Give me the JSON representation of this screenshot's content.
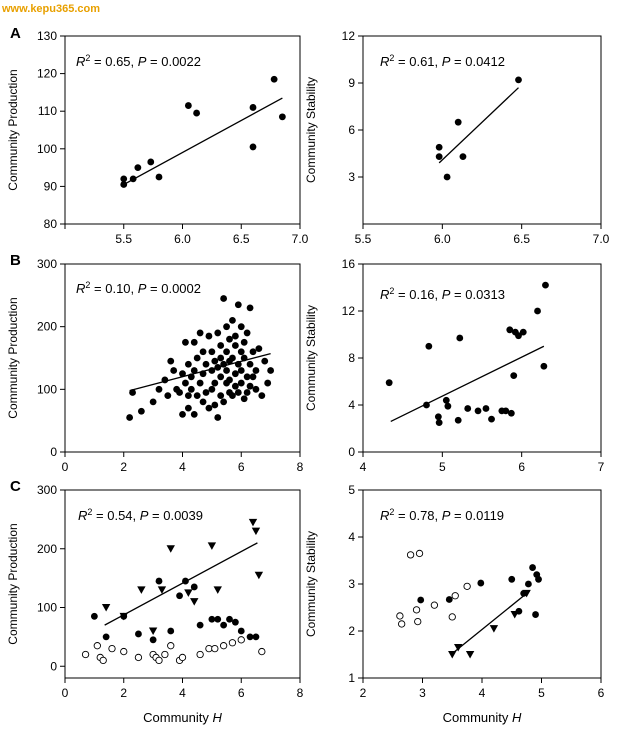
{
  "watermark": "www.kepu365.com",
  "chart_data": [
    {
      "id": "A-left",
      "panel": "A",
      "type": "scatter",
      "xlim": [
        5.0,
        7.0
      ],
      "xticks": [
        "5.0",
        "5.5",
        "6.0",
        "6.5",
        "7.0"
      ],
      "xtick_values": [
        5.0,
        5.5,
        6.0,
        6.5,
        7.0
      ],
      "show_xticklabels": true,
      "x_first_label": false,
      "ylim": [
        80,
        130
      ],
      "yticks": [
        "80",
        "90",
        "100",
        "110",
        "120",
        "130"
      ],
      "ytick_values": [
        80,
        90,
        100,
        110,
        120,
        130
      ],
      "ylabel": "Community Production",
      "xlabel": "",
      "stat": {
        "r2": "0.65",
        "p": "0.0022"
      },
      "series": [
        {
          "marker": "filled-circle",
          "x": [
            5.5,
            5.5,
            5.58,
            5.62,
            5.73,
            5.8,
            6.05,
            6.12,
            6.6,
            6.6,
            6.78,
            6.85
          ],
          "y": [
            92,
            90.5,
            92,
            95,
            96.5,
            92.5,
            111.5,
            109.5,
            100.5,
            111,
            118.5,
            108.5
          ]
        }
      ],
      "fit": {
        "x": [
          5.5,
          6.85
        ],
        "y": [
          90.5,
          113.5
        ]
      }
    },
    {
      "id": "A-right",
      "panel": "",
      "type": "scatter",
      "xlim": [
        5.5,
        7.0
      ],
      "xticks": [
        "5.5",
        "6.0",
        "6.5",
        "7.0"
      ],
      "xtick_values": [
        5.5,
        6.0,
        6.5,
        7.0
      ],
      "show_xticklabels": true,
      "x_first_label": true,
      "ylim": [
        0,
        12
      ],
      "yticks": [
        "3",
        "6",
        "9",
        "12"
      ],
      "ytick_values": [
        3,
        6,
        9,
        12
      ],
      "ylabel": "Community Stability",
      "xlabel": "",
      "stat": {
        "r2": "0.61",
        "p": "0.0412"
      },
      "series": [
        {
          "marker": "filled-circle",
          "x": [
            5.98,
            5.98,
            6.03,
            6.1,
            6.13,
            6.48
          ],
          "y": [
            4.9,
            4.3,
            3.0,
            6.5,
            4.3,
            9.2
          ]
        }
      ],
      "fit": {
        "x": [
          5.98,
          6.48
        ],
        "y": [
          3.9,
          8.7
        ]
      }
    },
    {
      "id": "B-left",
      "panel": "B",
      "type": "scatter",
      "xlim": [
        0,
        8
      ],
      "xticks": [
        "0",
        "2",
        "4",
        "6",
        "8"
      ],
      "xtick_values": [
        0,
        2,
        4,
        6,
        8
      ],
      "show_xticklabels": true,
      "x_first_label": true,
      "ylim": [
        0,
        300
      ],
      "yticks": [
        "0",
        "100",
        "200",
        "300"
      ],
      "ytick_values": [
        0,
        100,
        200,
        300
      ],
      "ylabel": "Community Production",
      "xlabel": "",
      "stat": {
        "r2": "0.10",
        "p": "0.0002"
      },
      "series": [
        {
          "marker": "filled-circle",
          "x": [
            2.2,
            2.3,
            2.6,
            3.0,
            3.2,
            3.4,
            3.5,
            3.6,
            3.7,
            3.8,
            3.9,
            4.0,
            4.0,
            4.1,
            4.1,
            4.2,
            4.2,
            4.2,
            4.3,
            4.3,
            4.4,
            4.4,
            4.4,
            4.5,
            4.5,
            4.6,
            4.6,
            4.7,
            4.7,
            4.7,
            4.8,
            4.8,
            4.9,
            4.9,
            5.0,
            5.0,
            5.0,
            5.1,
            5.1,
            5.1,
            5.2,
            5.2,
            5.2,
            5.3,
            5.3,
            5.3,
            5.3,
            5.4,
            5.4,
            5.4,
            5.5,
            5.5,
            5.5,
            5.5,
            5.6,
            5.6,
            5.6,
            5.6,
            5.7,
            5.7,
            5.7,
            5.8,
            5.8,
            5.8,
            5.8,
            5.9,
            5.9,
            5.9,
            6.0,
            6.0,
            6.0,
            6.0,
            6.1,
            6.1,
            6.1,
            6.2,
            6.2,
            6.2,
            6.3,
            6.3,
            6.3,
            6.4,
            6.4,
            6.5,
            6.5,
            6.6,
            6.7,
            6.8,
            6.9,
            7.0
          ],
          "y": [
            55,
            95,
            65,
            80,
            100,
            115,
            90,
            145,
            130,
            100,
            95,
            60,
            125,
            110,
            175,
            70,
            140,
            90,
            100,
            120,
            60,
            175,
            130,
            150,
            90,
            190,
            110,
            80,
            160,
            125,
            95,
            140,
            70,
            185,
            100,
            160,
            130,
            75,
            145,
            110,
            190,
            55,
            135,
            90,
            170,
            120,
            150,
            245,
            80,
            140,
            200,
            110,
            160,
            130,
            95,
            180,
            145,
            115,
            90,
            210,
            150,
            170,
            125,
            105,
            185,
            140,
            95,
            235,
            160,
            130,
            110,
            200,
            85,
            150,
            175,
            120,
            95,
            190,
            140,
            105,
            230,
            160,
            120,
            130,
            100,
            165,
            90,
            145,
            110,
            130
          ]
        }
      ],
      "fit": {
        "x": [
          2.2,
          7.0
        ],
        "y": [
          98,
          157
        ]
      }
    },
    {
      "id": "B-right",
      "panel": "",
      "type": "scatter",
      "xlim": [
        4,
        7
      ],
      "xticks": [
        "4",
        "5",
        "6",
        "7"
      ],
      "xtick_values": [
        4,
        5,
        6,
        7
      ],
      "show_xticklabels": true,
      "x_first_label": true,
      "ylim": [
        0,
        16
      ],
      "yticks": [
        "0",
        "4",
        "8",
        "12",
        "16"
      ],
      "ytick_values": [
        0,
        4,
        8,
        12,
        16
      ],
      "ylabel": "Community Stability",
      "xlabel": "",
      "stat": {
        "r2": "0.16",
        "p": "0.0313"
      },
      "series": [
        {
          "marker": "filled-circle",
          "x": [
            4.33,
            4.8,
            4.83,
            4.95,
            4.96,
            5.05,
            5.07,
            5.2,
            5.22,
            5.32,
            5.45,
            5.55,
            5.62,
            5.75,
            5.8,
            5.85,
            5.87,
            5.9,
            5.92,
            5.96,
            6.02,
            6.2,
            6.28,
            6.3
          ],
          "y": [
            5.9,
            4.0,
            9.0,
            3.0,
            2.5,
            4.4,
            3.9,
            2.7,
            9.7,
            3.7,
            3.5,
            3.7,
            2.8,
            3.5,
            3.5,
            10.4,
            3.3,
            6.5,
            10.2,
            9.9,
            10.2,
            12.0,
            7.3,
            14.2
          ]
        }
      ],
      "fit": {
        "x": [
          4.35,
          6.28
        ],
        "y": [
          2.6,
          9.0
        ]
      }
    },
    {
      "id": "C-left",
      "panel": "C",
      "type": "scatter",
      "xlim": [
        0,
        8
      ],
      "xticks": [
        "0",
        "2",
        "4",
        "6",
        "8"
      ],
      "xtick_values": [
        0,
        2,
        4,
        6,
        8
      ],
      "show_xticklabels": true,
      "x_first_label": true,
      "ylim": [
        -20,
        300
      ],
      "yticks": [
        "0",
        "100",
        "200",
        "300"
      ],
      "ytick_values": [
        0,
        100,
        200,
        300
      ],
      "ylabel": "Community Production",
      "xlabel": "Community H",
      "stat": {
        "r2": "0.54",
        "p": "0.0039"
      },
      "series": [
        {
          "marker": "filled-circle",
          "x": [
            1.0,
            1.4,
            2.0,
            2.5,
            3.0,
            3.2,
            3.6,
            3.9,
            4.1,
            4.4,
            4.6,
            5.0,
            5.2,
            5.4,
            5.6,
            5.8,
            6.0,
            6.3,
            6.5
          ],
          "y": [
            85,
            50,
            85,
            55,
            45,
            145,
            60,
            120,
            145,
            135,
            70,
            80,
            80,
            70,
            80,
            75,
            60,
            50,
            50
          ]
        },
        {
          "marker": "filled-triangle-down",
          "x": [
            1.4,
            2.0,
            2.6,
            3.0,
            3.3,
            3.6,
            4.2,
            4.4,
            5.0,
            5.2,
            6.4,
            6.5,
            6.6
          ],
          "y": [
            100,
            85,
            130,
            60,
            130,
            200,
            125,
            110,
            205,
            130,
            245,
            230,
            155
          ]
        },
        {
          "marker": "open-circle",
          "x": [
            0.7,
            1.1,
            1.2,
            1.3,
            1.6,
            2.0,
            2.5,
            3.0,
            3.1,
            3.2,
            3.4,
            3.6,
            3.9,
            4.0,
            4.6,
            4.9,
            5.1,
            5.4,
            5.7,
            6.0,
            6.7
          ],
          "y": [
            20,
            35,
            15,
            10,
            30,
            25,
            15,
            20,
            15,
            10,
            20,
            35,
            10,
            15,
            20,
            30,
            30,
            35,
            40,
            45,
            25
          ]
        }
      ],
      "fit": {
        "x": [
          1.35,
          6.55
        ],
        "y": [
          70,
          210
        ]
      }
    },
    {
      "id": "C-right",
      "panel": "",
      "type": "scatter",
      "xlim": [
        2,
        6
      ],
      "xticks": [
        "2",
        "3",
        "4",
        "5",
        "6"
      ],
      "xtick_values": [
        2,
        3,
        4,
        5,
        6
      ],
      "show_xticklabels": true,
      "x_first_label": true,
      "ylim": [
        1,
        5
      ],
      "yticks": [
        "1",
        "2",
        "3",
        "4",
        "5"
      ],
      "ytick_values": [
        1,
        2,
        3,
        4,
        5
      ],
      "ylabel": "Community Stability",
      "xlabel": "Community H",
      "stat": {
        "r2": "0.78",
        "p": "0.0119"
      },
      "series": [
        {
          "marker": "filled-circle",
          "x": [
            2.97,
            3.45,
            3.98,
            4.5,
            4.62,
            4.7,
            4.78,
            4.85,
            4.9,
            4.92,
            4.95
          ],
          "y": [
            2.66,
            2.67,
            3.02,
            3.1,
            2.42,
            2.8,
            3.0,
            3.35,
            2.35,
            3.2,
            3.1
          ]
        },
        {
          "marker": "filled-triangle-down",
          "x": [
            3.5,
            3.6,
            3.8,
            4.2,
            4.55,
            4.75
          ],
          "y": [
            1.5,
            1.65,
            1.5,
            2.05,
            2.35,
            2.8
          ]
        },
        {
          "marker": "open-circle",
          "x": [
            2.62,
            2.65,
            2.8,
            2.9,
            2.92,
            2.95,
            3.2,
            3.5,
            3.55,
            3.75
          ],
          "y": [
            2.32,
            2.15,
            3.62,
            2.45,
            2.2,
            3.65,
            2.55,
            2.3,
            2.75,
            2.95
          ]
        }
      ],
      "fit": {
        "x": [
          3.48,
          4.8
        ],
        "y": [
          1.5,
          2.85
        ]
      }
    }
  ]
}
